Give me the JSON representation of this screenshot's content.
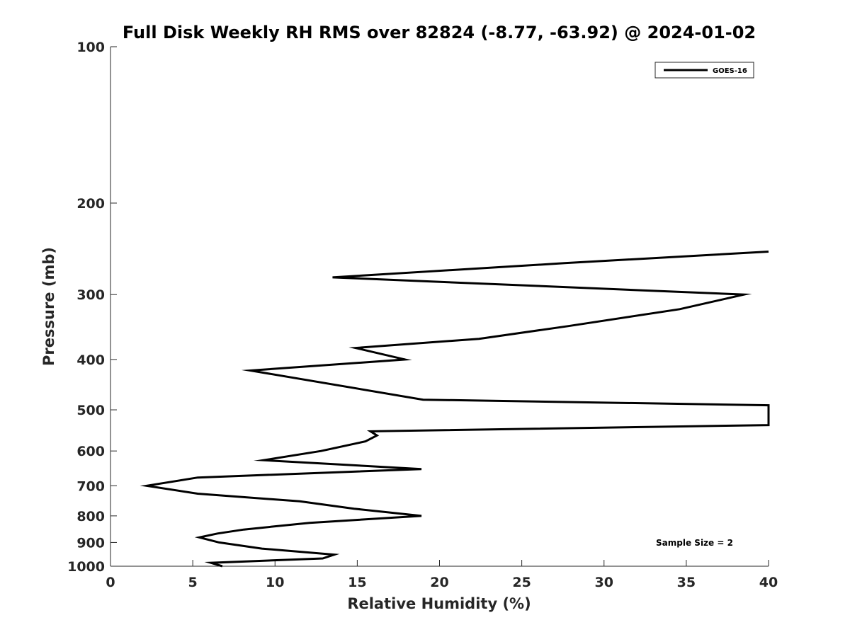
{
  "chart_data": {
    "type": "line",
    "title": "Full Disk Weekly RH RMS over 82824 (-8.77, -63.92) @ 2024-01-02",
    "xlabel": "Relative Humidity (%)",
    "ylabel": "Pressure (mb)",
    "xlim": [
      0,
      40
    ],
    "ylim": [
      100,
      1000
    ],
    "y_scale": "log",
    "y_reversed": true,
    "grid": false,
    "legend_position": "top-right",
    "x_ticks": [
      0,
      5,
      10,
      15,
      20,
      25,
      30,
      35,
      40
    ],
    "y_ticks": [
      100,
      200,
      300,
      400,
      500,
      600,
      700,
      800,
      900,
      1000
    ],
    "x_tick_labels": [
      "0",
      "5",
      "10",
      "15",
      "20",
      "25",
      "30",
      "35",
      "40"
    ],
    "y_tick_labels": [
      "100",
      "200",
      "300",
      "400",
      "500",
      "600",
      "700",
      "800",
      "900",
      "1000"
    ],
    "series": [
      {
        "name": "GOES-16",
        "color": "#000000",
        "points": [
          {
            "x": 6.8,
            "y": 1000
          },
          {
            "x": 6.1,
            "y": 985
          },
          {
            "x": 12.9,
            "y": 966
          },
          {
            "x": 13.6,
            "y": 950
          },
          {
            "x": 9.2,
            "y": 925
          },
          {
            "x": 6.6,
            "y": 900
          },
          {
            "x": 5.4,
            "y": 880
          },
          {
            "x": 6.5,
            "y": 865
          },
          {
            "x": 8.1,
            "y": 850
          },
          {
            "x": 12.1,
            "y": 825
          },
          {
            "x": 18.9,
            "y": 800
          },
          {
            "x": 14.8,
            "y": 775
          },
          {
            "x": 11.5,
            "y": 750
          },
          {
            "x": 5.3,
            "y": 725
          },
          {
            "x": 2.2,
            "y": 700
          },
          {
            "x": 5.3,
            "y": 675
          },
          {
            "x": 18.9,
            "y": 650
          },
          {
            "x": 9.3,
            "y": 625
          },
          {
            "x": 12.8,
            "y": 600
          },
          {
            "x": 15.5,
            "y": 575
          },
          {
            "x": 16.2,
            "y": 560
          },
          {
            "x": 15.8,
            "y": 550
          },
          {
            "x": 40.0,
            "y": 535
          },
          {
            "x": 40.0,
            "y": 490
          },
          {
            "x": 19.0,
            "y": 478
          },
          {
            "x": 8.5,
            "y": 420
          },
          {
            "x": 17.9,
            "y": 400
          },
          {
            "x": 14.9,
            "y": 380
          },
          {
            "x": 22.4,
            "y": 365
          },
          {
            "x": 27.8,
            "y": 345
          },
          {
            "x": 34.6,
            "y": 320
          },
          {
            "x": 38.5,
            "y": 300
          },
          {
            "x": 13.5,
            "y": 278
          },
          {
            "x": 27.6,
            "y": 261
          },
          {
            "x": 40.0,
            "y": 248
          }
        ]
      }
    ],
    "annotations": [
      {
        "text": "Sample Size = 2",
        "x": 35.5,
        "y": 902
      }
    ]
  }
}
